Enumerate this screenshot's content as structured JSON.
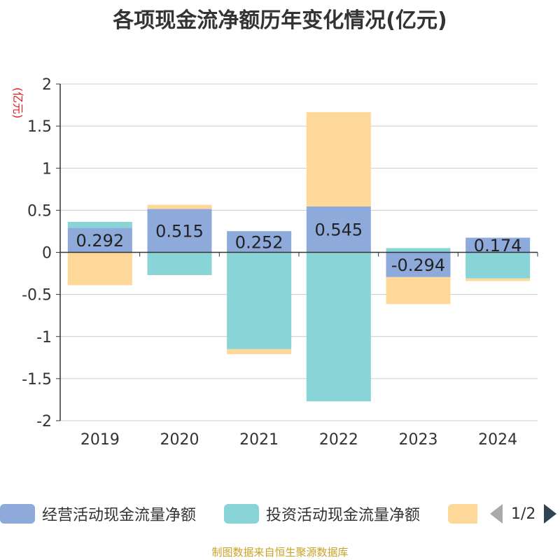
{
  "title": "各项现金流净额历年变化情况(亿元)",
  "source_note": "制图数据来自恒生聚源数据库",
  "legend": {
    "items": [
      {
        "label": "经营活动现金流量净额",
        "color": "#8eaadb"
      },
      {
        "label": "投资活动现金流量净额",
        "color": "#88d4d6"
      },
      {
        "label": "",
        "color": "#fdd898"
      }
    ],
    "pager_text": "1/2"
  },
  "chart_data": {
    "type": "bar",
    "stacked": true,
    "title": "各项现金流净额历年变化情况(亿元)",
    "ylabel": "(亿元)",
    "xlabel": "",
    "ylim": [
      -2,
      2
    ],
    "yticks": [
      2,
      1.5,
      1,
      0.5,
      0,
      -0.5,
      -1,
      -1.5,
      -2
    ],
    "ytick_labels": [
      "2",
      "1.5",
      "1",
      "0.5",
      "0",
      "-0.5",
      "-1",
      "-1.5",
      "-2"
    ],
    "grid": true,
    "legend_position": "bottom",
    "categories": [
      "2019",
      "2020",
      "2021",
      "2022",
      "2023",
      "2024"
    ],
    "series": [
      {
        "name": "经营活动现金流量净额",
        "color": "#8eaadb",
        "values": [
          0.292,
          0.515,
          0.252,
          0.545,
          -0.294,
          0.174
        ],
        "labels": [
          "0.292",
          "0.515",
          "0.252",
          "0.545",
          "-0.294",
          "0.174"
        ]
      },
      {
        "name": "投资活动现金流量净额",
        "color": "#88d4d6",
        "values": [
          0.07,
          -0.27,
          -1.15,
          -1.77,
          0.05,
          -0.31
        ]
      },
      {
        "name": "",
        "color": "#fdd898",
        "values": [
          -0.39,
          0.05,
          -0.06,
          1.12,
          -0.32,
          -0.03
        ]
      }
    ]
  }
}
